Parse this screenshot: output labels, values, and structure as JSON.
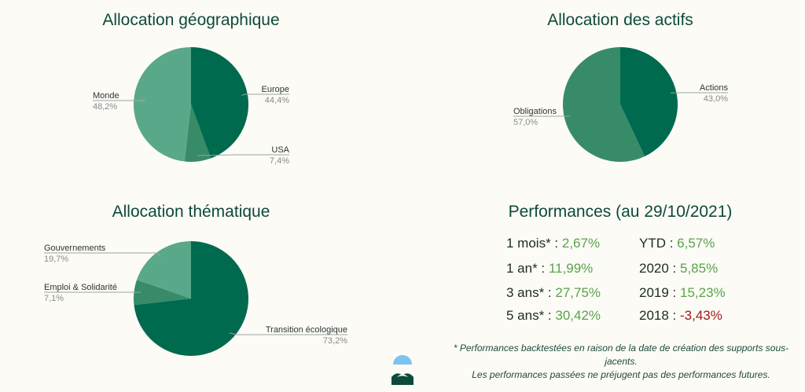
{
  "colors": {
    "dark": "#006a4e",
    "mid": "#378b69",
    "light": "#5aa88a",
    "positive": "#5aa34a",
    "negative": "#a11717",
    "title": "#0d4a3a"
  },
  "chart_data": [
    {
      "type": "pie",
      "title": "Allocation géographique",
      "slices": [
        {
          "label": "Europe",
          "value": 44.4,
          "display": "44,4%",
          "color": "#006a4e"
        },
        {
          "label": "USA",
          "value": 7.4,
          "display": "7,4%",
          "color": "#378b69"
        },
        {
          "label": "Monde",
          "value": 48.2,
          "display": "48,2%",
          "color": "#5aa88a"
        }
      ]
    },
    {
      "type": "pie",
      "title": "Allocation des actifs",
      "slices": [
        {
          "label": "Actions",
          "value": 43.0,
          "display": "43,0%",
          "color": "#006a4e"
        },
        {
          "label": "Obligations",
          "value": 57.0,
          "display": "57,0%",
          "color": "#378b69"
        }
      ]
    },
    {
      "type": "pie",
      "title": "Allocation thématique",
      "slices": [
        {
          "label": "Transition écologique",
          "value": 73.2,
          "display": "73,2%",
          "color": "#006a4e"
        },
        {
          "label": "Emploi & Solidarité",
          "value": 7.1,
          "display": "7,1%",
          "color": "#378b69"
        },
        {
          "label": "Gouvernements",
          "value": 19.7,
          "display": "19,7%",
          "color": "#5aa88a"
        }
      ]
    }
  ],
  "performances": {
    "title": "Performances (au 29/10/2021)",
    "left": [
      {
        "label": "1 mois*",
        "value": "2,67%"
      },
      {
        "label": "1 an*",
        "value": "11,99%"
      },
      {
        "label": "3 ans*",
        "value": "27,75%"
      },
      {
        "label": "5 ans*",
        "value": "30,42%"
      }
    ],
    "right": [
      {
        "label": "YTD",
        "value": "6,57%"
      },
      {
        "label": "2020",
        "value": "5,85%"
      },
      {
        "label": "2019",
        "value": "15,23%"
      },
      {
        "label": "2018",
        "value": "-3,43%"
      }
    ],
    "footnote_line1": "* Performances backtestées en raison de la date de création des supports sous-jacents.",
    "footnote_line2": "Les performances passées ne préjugent pas des performances futures."
  }
}
